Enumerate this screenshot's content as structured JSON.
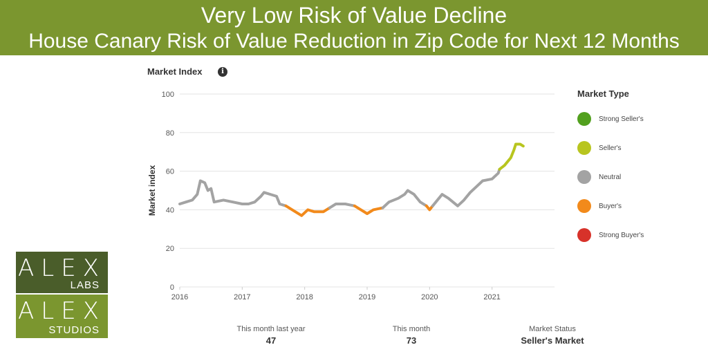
{
  "banner": {
    "line1": "Very Low Risk of Value Decline",
    "line2": "House Canary Risk of Value Reduction in Zip Code for Next 12 Months"
  },
  "panel": {
    "title": "Market Index",
    "info_icon": "info-icon",
    "info_glyph": "i"
  },
  "legend": {
    "title": "Market Type",
    "items": [
      {
        "label": "Strong Seller's",
        "color": "#52a01e"
      },
      {
        "label": "Seller's",
        "color": "#b8c51f"
      },
      {
        "label": "Neutral",
        "color": "#a3a3a3"
      },
      {
        "label": "Buyer's",
        "color": "#f28a1b"
      },
      {
        "label": "Strong Buyer's",
        "color": "#d7322a"
      }
    ]
  },
  "stats": {
    "last_year_label": "This month last year",
    "last_year_value": "47",
    "this_month_label": "This month",
    "this_month_value": "73",
    "status_label": "Market Status",
    "status_value": "Seller's Market"
  },
  "logo": {
    "top_big": "ALEX",
    "top_small": "LABS",
    "bottom_big": "ALEX",
    "bottom_small": "STUDIOS",
    "top_color": "#4a5d2a",
    "bottom_color": "#7b962f"
  },
  "chart_data": {
    "type": "line",
    "title": "",
    "xlabel": "",
    "ylabel": "Market index",
    "xlim": [
      2016.0,
      2022.0
    ],
    "ylim": [
      0,
      100
    ],
    "x_ticks": [
      "2016",
      "2017",
      "2018",
      "2019",
      "2020",
      "2021"
    ],
    "y_ticks": [
      0,
      20,
      40,
      60,
      80,
      100
    ],
    "grid": true,
    "legend_position": "right",
    "colors": {
      "neutral": "#a3a3a3",
      "buyers": "#f28a1b",
      "sellers": "#b8c51f"
    },
    "series": [
      {
        "market_type": "neutral",
        "points": [
          [
            2016.0,
            43
          ],
          [
            2016.1,
            44
          ],
          [
            2016.2,
            45
          ],
          [
            2016.28,
            48
          ],
          [
            2016.33,
            55
          ],
          [
            2016.4,
            54
          ],
          [
            2016.45,
            50
          ],
          [
            2016.5,
            51
          ],
          [
            2016.55,
            44
          ],
          [
            2016.7,
            45
          ],
          [
            2016.85,
            44
          ],
          [
            2017.0,
            43
          ],
          [
            2017.1,
            43
          ],
          [
            2017.2,
            44
          ],
          [
            2017.3,
            47
          ],
          [
            2017.35,
            49
          ],
          [
            2017.45,
            48
          ],
          [
            2017.55,
            47
          ],
          [
            2017.6,
            43
          ],
          [
            2017.7,
            42
          ]
        ]
      },
      {
        "market_type": "buyers",
        "points": [
          [
            2017.7,
            42
          ],
          [
            2017.8,
            40
          ],
          [
            2017.95,
            37
          ],
          [
            2018.05,
            40
          ],
          [
            2018.15,
            39
          ],
          [
            2018.3,
            39
          ],
          [
            2018.4,
            41
          ]
        ]
      },
      {
        "market_type": "neutral",
        "points": [
          [
            2018.4,
            41
          ],
          [
            2018.5,
            43
          ],
          [
            2018.65,
            43
          ],
          [
            2018.8,
            42
          ]
        ]
      },
      {
        "market_type": "buyers",
        "points": [
          [
            2018.8,
            42
          ],
          [
            2018.9,
            40
          ],
          [
            2019.0,
            38
          ],
          [
            2019.1,
            40
          ],
          [
            2019.25,
            41
          ]
        ]
      },
      {
        "market_type": "neutral",
        "points": [
          [
            2019.25,
            41
          ],
          [
            2019.35,
            44
          ],
          [
            2019.5,
            46
          ],
          [
            2019.6,
            48
          ],
          [
            2019.65,
            50
          ],
          [
            2019.75,
            48
          ],
          [
            2019.85,
            44
          ],
          [
            2019.95,
            42
          ]
        ]
      },
      {
        "market_type": "buyers",
        "points": [
          [
            2019.95,
            42
          ],
          [
            2020.0,
            40
          ],
          [
            2020.05,
            42
          ]
        ]
      },
      {
        "market_type": "neutral",
        "points": [
          [
            2020.05,
            42
          ],
          [
            2020.15,
            46
          ],
          [
            2020.2,
            48
          ],
          [
            2020.3,
            46
          ],
          [
            2020.45,
            42
          ],
          [
            2020.55,
            45
          ],
          [
            2020.65,
            49
          ],
          [
            2020.75,
            52
          ],
          [
            2020.85,
            55
          ],
          [
            2021.0,
            56
          ],
          [
            2021.1,
            59
          ],
          [
            2021.12,
            61
          ]
        ]
      },
      {
        "market_type": "sellers",
        "points": [
          [
            2021.12,
            61
          ],
          [
            2021.2,
            63
          ],
          [
            2021.3,
            67
          ],
          [
            2021.35,
            71
          ],
          [
            2021.38,
            74
          ],
          [
            2021.45,
            74
          ],
          [
            2021.5,
            73
          ]
        ]
      }
    ]
  }
}
